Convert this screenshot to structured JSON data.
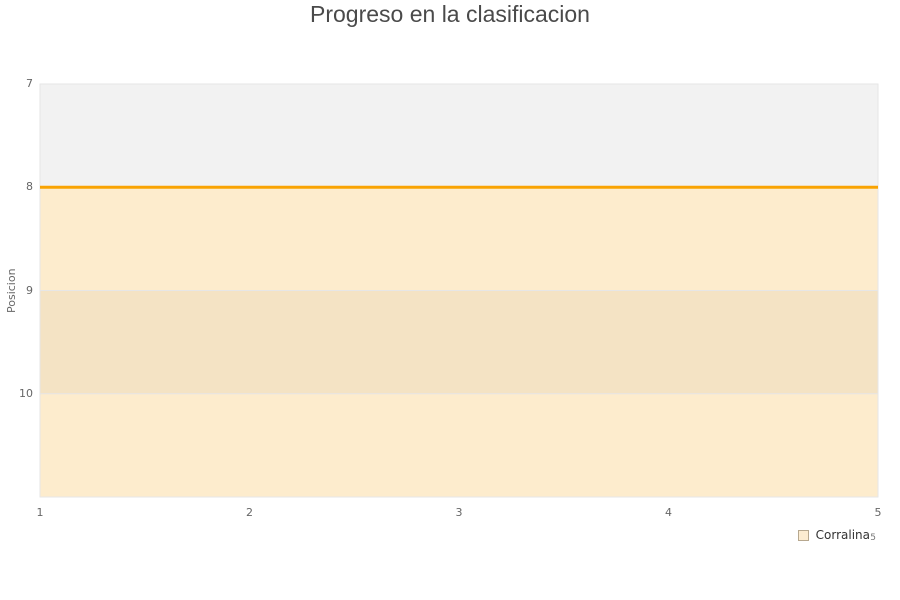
{
  "chart_data": {
    "type": "line",
    "title": "Progreso en la clasificacion",
    "xlabel": "",
    "ylabel": "Posicion",
    "x": [
      1,
      2,
      3,
      4,
      5
    ],
    "series": [
      {
        "name": "Corralina",
        "values": [
          8,
          8,
          8,
          8,
          8
        ],
        "color": "#F9A302"
      }
    ],
    "xlim": [
      1,
      5
    ],
    "ylim": [
      7,
      11
    ],
    "y_reversed": true,
    "yticks": [
      7,
      8,
      9,
      10
    ],
    "xticks": [
      1,
      2,
      3,
      4,
      5
    ],
    "grid_on": true,
    "alternate_band_color": "#f2f2f2",
    "area_fill": "rgba(248,193,92,0.31)",
    "grid_color": "#e6e6e6",
    "legend_position": "bottom-right",
    "legend_swatch_fill": "#fcecd1",
    "legend_swatch_border": "#b7a88f"
  },
  "legend_extra": "5"
}
